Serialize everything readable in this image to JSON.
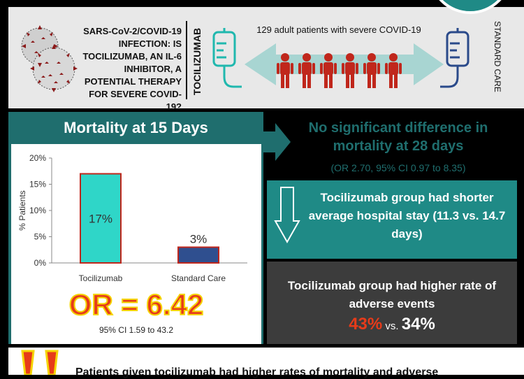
{
  "header": {
    "question": "SARS-CoV-2/COVID-19 INFECTION: IS TOCILIZUMAB, AN IL-6 INHIBITOR, A POTENTIAL THERAPY FOR SEVERE COVID-19?",
    "left_arm": "TOCILIZUMAB",
    "right_arm": "STANDARD CARE",
    "patients_caption": "129 adult patients with severe COVID-19",
    "patient_count_icons": 6
  },
  "mortality_panel": {
    "title": "Mortality at 15 Days",
    "odds_ratio": "OR = 6.42",
    "ci": "95% CI 1.59 to 43.2"
  },
  "chart_data": {
    "type": "bar",
    "categories": [
      "Tocilizumab",
      "Standard Care"
    ],
    "values": [
      17,
      3
    ],
    "data_labels": [
      "17%",
      "3%"
    ],
    "ylabel": "% Patients",
    "yticks": [
      "0%",
      "5%",
      "10%",
      "15%",
      "20%"
    ],
    "ylim": [
      0,
      20
    ],
    "grid": false,
    "colors": [
      "#2fd6c8",
      "#2f4f8f"
    ],
    "border_color": "#c0271c"
  },
  "findings": {
    "no_difference": "No significant difference in mortality at 28 days",
    "no_difference_stats": "(OR 2.70, 95% CI 0.97 to 8.35)",
    "hospital_stay": "Tocilizumab group had shorter average hospital stay (11.3 vs. 14.7 days)",
    "adverse_events": "Tocilizumab group had higher rate of adverse events",
    "ae_toci": "43%",
    "ae_vs": "vs.",
    "ae_std": "34%"
  },
  "conclusion": "Patients given tocilizumab had higher rates of mortality and adverse",
  "colors": {
    "dark_teal": "#1f6e6e",
    "teal": "#1f8a86",
    "red": "#e63b1a",
    "yellow": "#f5d400",
    "dark_grey": "#3c3c3c"
  }
}
